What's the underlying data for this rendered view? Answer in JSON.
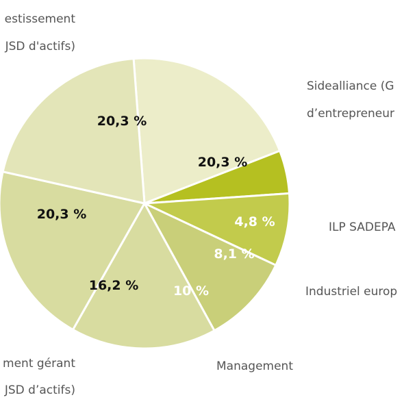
{
  "chart_data": {
    "type": "pie",
    "slices": [
      {
        "value_label": "20,3 %",
        "value": 20.3,
        "color": "#ecedc9",
        "text_color": "#111111"
      },
      {
        "value_label": "4,8 %",
        "value": 4.8,
        "color": "#b5c021",
        "text_color": "#ffffff"
      },
      {
        "value_label": "8,1 %",
        "value": 8.1,
        "color": "#c2cb4c",
        "text_color": "#ffffff"
      },
      {
        "value_label": "10 %",
        "value": 10.0,
        "color": "#c9cf79",
        "text_color": "#ffffff"
      },
      {
        "value_label": "16,2 %",
        "value": 16.2,
        "color": "#d8dca0",
        "text_color": "#111111"
      },
      {
        "value_label": "20,3 %",
        "value": 20.3,
        "color": "#d8dca0",
        "text_color": "#111111"
      },
      {
        "value_label": "20,3 %",
        "value": 20.3,
        "color": "#e3e5b8",
        "text_color": "#111111"
      }
    ],
    "outer_labels": [
      {
        "text": "estissement"
      },
      {
        "text": "JSD d'actifs)"
      },
      {
        "text": "Sidealliance (G"
      },
      {
        "text": "d’entrepreneur"
      },
      {
        "text": "ILP SADEPA"
      },
      {
        "text": "Industriel europ"
      },
      {
        "text": "Management"
      },
      {
        "text": "ment gérant"
      },
      {
        "text": "JSD d’actifs)"
      }
    ]
  }
}
